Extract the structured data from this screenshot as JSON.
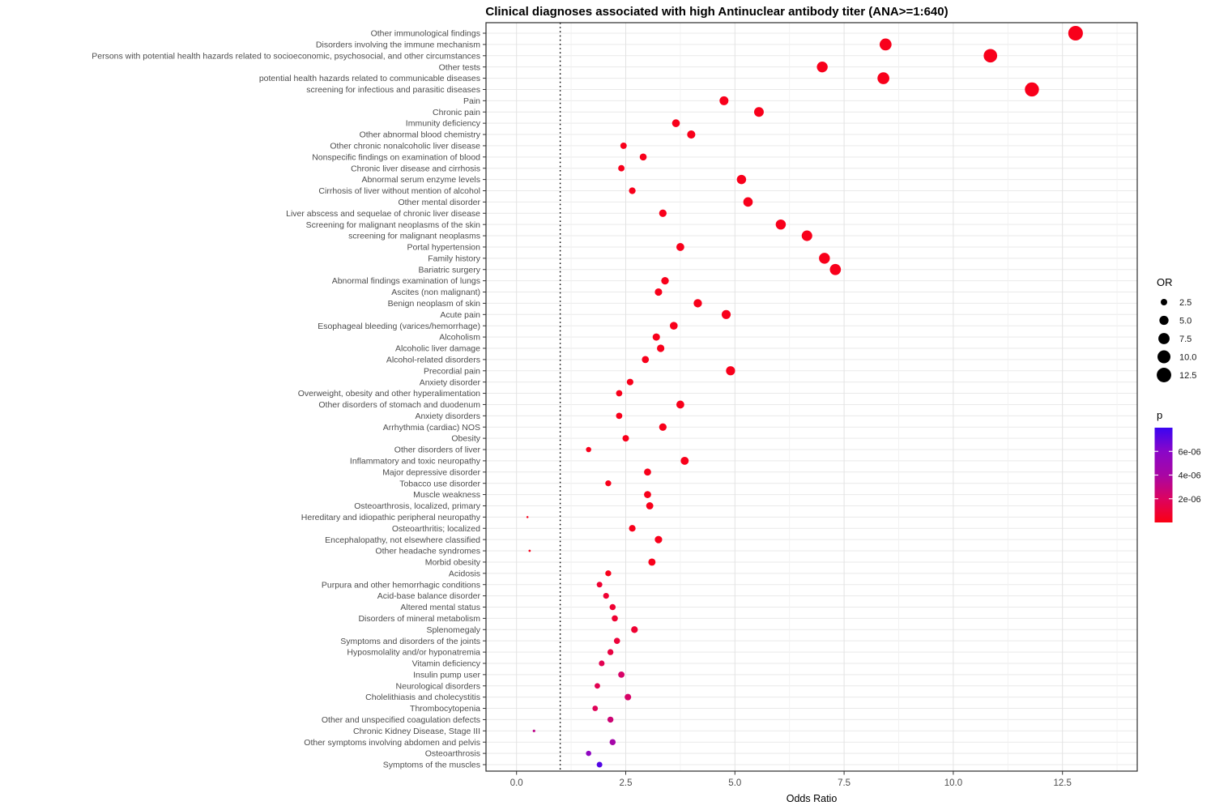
{
  "chart_data": {
    "type": "scatter",
    "title": "Clinical diagnoses associated with high Antinuclear antibody titer (ANA>=1:640)",
    "xlabel": "Odds Ratio",
    "ylabel": "",
    "grid": true,
    "xlim": [
      -0.7,
      14.2
    ],
    "x_tick_values": [
      0,
      2.5,
      5,
      7.5,
      10,
      12.5
    ],
    "x_tick_labels": [
      "0.0",
      "2.5",
      "5.0",
      "7.5",
      "10.0",
      "12.5"
    ],
    "x_minor_values": [
      1.25,
      3.75,
      6.25,
      8.75,
      11.25,
      13.75
    ],
    "reference_line_or": 1.0,
    "legend_size": {
      "title": "OR",
      "values": [
        2.5,
        5.0,
        7.5,
        10.0,
        12.5
      ],
      "labels": [
        "2.5",
        "5.0",
        "7.5",
        "10.0",
        "12.5"
      ]
    },
    "legend_color": {
      "title": "p",
      "tick_labels": [
        "6e-06",
        "4e-06",
        "2e-06"
      ],
      "tick_values": [
        6e-06,
        4e-06,
        2e-06
      ],
      "range": [
        0,
        8e-06
      ],
      "low_p_color": "#FB0013",
      "high_p_color": "#3A05F2",
      "gradient_stops": [
        "#3A05F2",
        "#8A06C8",
        "#A806A4",
        "#DC0360",
        "#FB0013"
      ]
    },
    "points": [
      {
        "label": "Other immunological findings",
        "or": 12.8,
        "p": 2e-07
      },
      {
        "label": "Disorders involving the immune mechanism",
        "or": 8.45,
        "p": 2e-07
      },
      {
        "label": "Persons with potential health hazards related to socioeconomic, psychosocial, and other circumstances",
        "or": 10.85,
        "p": 2e-07
      },
      {
        "label": "Other tests",
        "or": 7.0,
        "p": 2e-07
      },
      {
        "label": "potential health hazards related to communicable diseases",
        "or": 8.4,
        "p": 2e-07
      },
      {
        "label": "screening for infectious and parasitic diseases",
        "or": 11.8,
        "p": 2e-07
      },
      {
        "label": "Pain",
        "or": 4.75,
        "p": 2e-07
      },
      {
        "label": "Chronic pain",
        "or": 5.55,
        "p": 2e-07
      },
      {
        "label": "Immunity deficiency",
        "or": 3.65,
        "p": 2e-07
      },
      {
        "label": "Other abnormal blood chemistry",
        "or": 4.0,
        "p": 2e-07
      },
      {
        "label": "Other chronic nonalcoholic liver disease",
        "or": 2.45,
        "p": 2e-07
      },
      {
        "label": "Nonspecific findings on examination of blood",
        "or": 2.9,
        "p": 2e-07
      },
      {
        "label": "Chronic liver disease and cirrhosis",
        "or": 2.4,
        "p": 2e-07
      },
      {
        "label": "Abnormal serum enzyme levels",
        "or": 5.15,
        "p": 2e-07
      },
      {
        "label": "Cirrhosis of liver without mention of alcohol",
        "or": 2.65,
        "p": 2e-07
      },
      {
        "label": "Other mental disorder",
        "or": 5.3,
        "p": 2e-07
      },
      {
        "label": "Liver abscess and sequelae of chronic liver disease",
        "or": 3.35,
        "p": 2e-07
      },
      {
        "label": "Screening for malignant neoplasms of the skin",
        "or": 6.05,
        "p": 2e-07
      },
      {
        "label": "screening for malignant neoplasms",
        "or": 6.65,
        "p": 2e-07
      },
      {
        "label": "Portal hypertension",
        "or": 3.75,
        "p": 2e-07
      },
      {
        "label": "Family history",
        "or": 7.05,
        "p": 2e-07
      },
      {
        "label": "Bariatric surgery",
        "or": 7.3,
        "p": 2e-07
      },
      {
        "label": "Abnormal findings examination of lungs",
        "or": 3.4,
        "p": 2e-07
      },
      {
        "label": "Ascites (non malignant)",
        "or": 3.25,
        "p": 2e-07
      },
      {
        "label": "Benign neoplasm of skin",
        "or": 4.15,
        "p": 2e-07
      },
      {
        "label": "Acute pain",
        "or": 4.8,
        "p": 2e-07
      },
      {
        "label": "Esophageal bleeding (varices/hemorrhage)",
        "or": 3.6,
        "p": 2e-07
      },
      {
        "label": "Alcoholism",
        "or": 3.2,
        "p": 2e-07
      },
      {
        "label": "Alcoholic liver damage",
        "or": 3.3,
        "p": 2e-07
      },
      {
        "label": "Alcohol-related disorders",
        "or": 2.95,
        "p": 2e-07
      },
      {
        "label": "Precordial pain",
        "or": 4.9,
        "p": 2e-07
      },
      {
        "label": "Anxiety disorder",
        "or": 2.6,
        "p": 2e-07
      },
      {
        "label": "Overweight, obesity and other hyperalimentation",
        "or": 2.35,
        "p": 2e-07
      },
      {
        "label": "Other disorders of stomach and duodenum",
        "or": 3.75,
        "p": 2e-07
      },
      {
        "label": "Anxiety disorders",
        "or": 2.35,
        "p": 2e-07
      },
      {
        "label": "Arrhythmia (cardiac) NOS",
        "or": 3.35,
        "p": 2e-07
      },
      {
        "label": "Obesity",
        "or": 2.5,
        "p": 2e-07
      },
      {
        "label": "Other disorders of liver",
        "or": 1.65,
        "p": 2e-07
      },
      {
        "label": "Inflammatory and toxic neuropathy",
        "or": 3.85,
        "p": 2e-07
      },
      {
        "label": "Major depressive disorder",
        "or": 3.0,
        "p": 2e-07
      },
      {
        "label": "Tobacco use disorder",
        "or": 2.1,
        "p": 2e-07
      },
      {
        "label": "Muscle weakness",
        "or": 3.0,
        "p": 2e-07
      },
      {
        "label": "Osteoarthrosis, localized, primary",
        "or": 3.05,
        "p": 2e-07
      },
      {
        "label": "Hereditary and idiopathic peripheral neuropathy",
        "or": 0.25,
        "p": 2e-07
      },
      {
        "label": "Osteoarthritis; localized",
        "or": 2.65,
        "p": 2e-07
      },
      {
        "label": "Encephalopathy, not elsewhere classified",
        "or": 3.25,
        "p": 2e-07
      },
      {
        "label": "Other headache syndromes",
        "or": 0.3,
        "p": 2e-07
      },
      {
        "label": "Morbid obesity",
        "or": 3.1,
        "p": 2e-07
      },
      {
        "label": "Acidosis",
        "or": 2.1,
        "p": 2e-07
      },
      {
        "label": "Purpura and other hemorrhagic conditions",
        "or": 1.9,
        "p": 8e-07
      },
      {
        "label": "Acid-base balance disorder",
        "or": 2.05,
        "p": 8e-07
      },
      {
        "label": "Altered mental status",
        "or": 2.2,
        "p": 8e-07
      },
      {
        "label": "Disorders of mineral metabolism",
        "or": 2.25,
        "p": 8e-07
      },
      {
        "label": "Splenomegaly",
        "or": 2.7,
        "p": 8e-07
      },
      {
        "label": "Symptoms and disorders of the joints",
        "or": 2.3,
        "p": 1e-06
      },
      {
        "label": "Hyposmolality and/or hyponatremia",
        "or": 2.15,
        "p": 1.2e-06
      },
      {
        "label": "Vitamin deficiency",
        "or": 1.95,
        "p": 1.6e-06
      },
      {
        "label": "Insulin pump user",
        "or": 2.4,
        "p": 2.2e-06
      },
      {
        "label": "Neurological disorders",
        "or": 1.85,
        "p": 1.6e-06
      },
      {
        "label": "Cholelithiasis and cholecystitis",
        "or": 2.55,
        "p": 2.2e-06
      },
      {
        "label": "Thrombocytopenia",
        "or": 1.8,
        "p": 1.8e-06
      },
      {
        "label": "Other and unspecified coagulation defects",
        "or": 2.15,
        "p": 2.6e-06
      },
      {
        "label": "Chronic Kidney Disease, Stage III",
        "or": 0.4,
        "p": 3.2e-06
      },
      {
        "label": "Other symptoms involving abdomen and pelvis",
        "or": 2.2,
        "p": 4.2e-06
      },
      {
        "label": "Osteoarthrosis",
        "or": 1.65,
        "p": 5.6e-06
      },
      {
        "label": "Symptoms of the muscles",
        "or": 1.9,
        "p": 7.4e-06
      }
    ],
    "style": {
      "panel_border": "#2B2B2B",
      "grid_major": "#E3E3E3",
      "grid_minor": "#F1F1F1",
      "grid_row": "#E9E9E9",
      "axis_text": "#4D4D4D",
      "axis_title": "#000000",
      "ref_line": "#000000",
      "legend_dot": "#000000"
    }
  }
}
